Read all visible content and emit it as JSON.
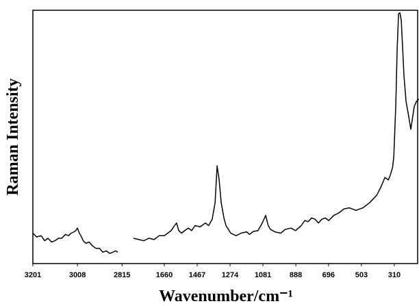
{
  "x_label": "Wavenumber/cm⁻¹",
  "y_label": "Raman Intensity",
  "chart_data": [
    {
      "type": "line",
      "color": "#000000",
      "xlim": [
        3201,
        2792
      ],
      "ylim": [
        0,
        100
      ],
      "xticks": [
        3201,
        3008,
        2815
      ],
      "x": [
        3201,
        3185,
        3165,
        3150,
        3136,
        3120,
        3106,
        3090,
        3076,
        3060,
        3047,
        3035,
        3023,
        3015,
        3008,
        3000,
        2993,
        2983,
        2972,
        2958,
        2943,
        2928,
        2913,
        2898,
        2883,
        2868,
        2854,
        2843,
        2833
      ],
      "values": [
        12,
        10.5,
        11,
        9,
        10,
        8.5,
        9,
        10,
        10,
        11.5,
        11,
        12,
        12.5,
        13,
        14,
        12,
        11,
        9,
        8,
        8.5,
        7,
        6,
        6,
        4.5,
        5,
        4,
        4.5,
        5,
        4.5
      ]
    },
    {
      "type": "line",
      "color": "#000000",
      "xlim": [
        1877,
        173
      ],
      "ylim": [
        0,
        100
      ],
      "xticks": [
        1660,
        1467,
        1274,
        1081,
        888,
        696,
        503,
        310
      ],
      "x": [
        1841,
        1810,
        1781,
        1750,
        1720,
        1690,
        1660,
        1640,
        1620,
        1600,
        1588,
        1575,
        1559,
        1540,
        1519,
        1500,
        1479,
        1450,
        1419,
        1400,
        1379,
        1362,
        1350,
        1338,
        1326,
        1310,
        1298,
        1270,
        1238,
        1210,
        1177,
        1160,
        1137,
        1110,
        1085,
        1065,
        1050,
        1037,
        1010,
        976,
        950,
        916,
        890,
        856,
        835,
        816,
        795,
        775,
        755,
        735,
        715,
        695,
        665,
        635,
        605,
        574,
        535,
        494,
        455,
        413,
        390,
        365,
        345,
        333,
        320,
        313,
        301,
        293,
        285,
        277,
        269,
        261,
        253,
        241,
        229,
        213,
        193,
        180,
        165
      ],
      "values": [
        10,
        9.5,
        9,
        10,
        9.5,
        11,
        11,
        12,
        13,
        15,
        16,
        13,
        12,
        13,
        14,
        13,
        15,
        14.5,
        16,
        15,
        17.5,
        24,
        38.6,
        33,
        24,
        18,
        15,
        12,
        11,
        12,
        12.5,
        11.5,
        12.7,
        13,
        16,
        19,
        15,
        13.5,
        12.5,
        12,
        13.5,
        14,
        13,
        15,
        17,
        16.5,
        18,
        17.5,
        16,
        17.5,
        18,
        17,
        19,
        20,
        21.6,
        22,
        21,
        22,
        24,
        27,
        30,
        34,
        33,
        35,
        38,
        42,
        63,
        85,
        98.6,
        99,
        96,
        85,
        74,
        64,
        59.5,
        53,
        62,
        64,
        65
      ]
    }
  ]
}
